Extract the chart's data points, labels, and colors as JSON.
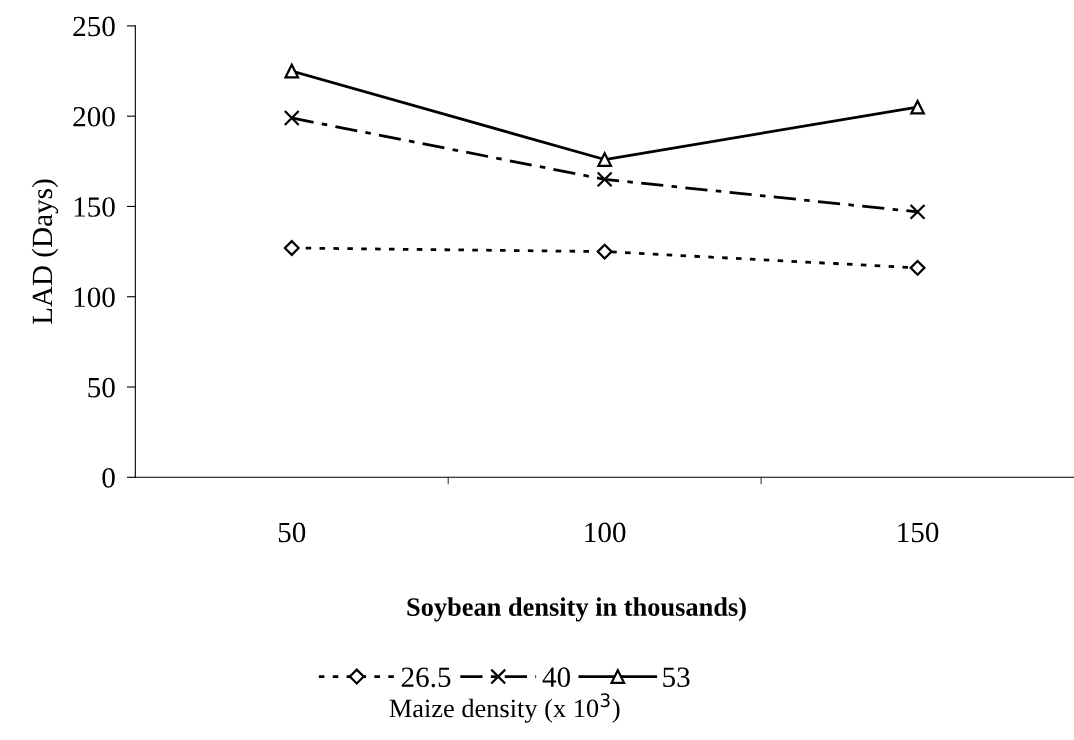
{
  "chart_data": {
    "type": "line",
    "xlabel": "Soybean density in thousands)",
    "ylabel": "LAD (Days)",
    "legend_title": "Maize density (x 10$^{3}$)",
    "categories": [
      "50",
      "100",
      "150"
    ],
    "series": [
      {
        "name": "26.5",
        "color": "#000000",
        "values": [
          127,
          125,
          116
        ],
        "marker": "diamond",
        "line_style": "dotted"
      },
      {
        "name": "40",
        "color": "#000000",
        "values": [
          199,
          165,
          147
        ],
        "marker": "cross",
        "line_style": "dashdot"
      },
      {
        "name": "53",
        "color": "#000000",
        "values": [
          225,
          176,
          205
        ],
        "marker": "triangle",
        "line_style": "solid"
      }
    ],
    "ylim": [
      0,
      250
    ],
    "yticks": [
      0,
      50,
      100,
      150,
      200,
      250
    ],
    "grid": false,
    "legend": "bottom"
  }
}
